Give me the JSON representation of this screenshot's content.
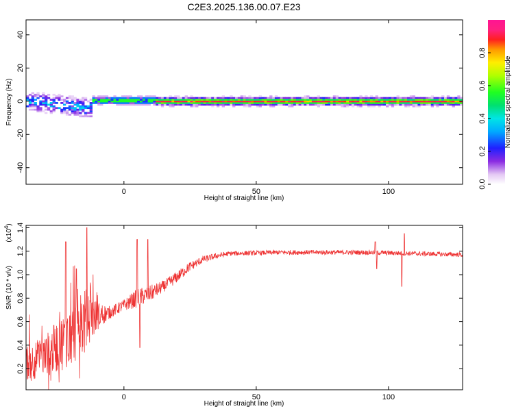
{
  "chart_data": [
    {
      "type": "heatmap",
      "title": "C2E3.2025.136.00.07.E23",
      "xlabel": "Height of straight line (km)",
      "ylabel": "Frequency (Hz)",
      "xlim": [
        -37,
        128
      ],
      "ylim": [
        -50,
        49
      ],
      "x_ticks": [
        0,
        50,
        100
      ],
      "y_ticks": [
        40,
        20,
        0,
        -20,
        -40
      ],
      "x_tick_labels": [
        "0",
        "50",
        "100"
      ],
      "y_tick_labels": [
        "40",
        "20",
        "0",
        "-20",
        "-40"
      ],
      "colorbar": {
        "label": "Normalized spectral amplitude",
        "ticks": [
          0.0,
          0.2,
          0.4,
          0.6,
          0.8
        ],
        "tick_labels": [
          "0.0",
          "0.2",
          "0.4",
          "0.6",
          "0.8"
        ],
        "range": [
          0,
          1
        ],
        "colormap": "rainbow (white-purple-blue-cyan-green-yellow-orange-red-magenta)"
      },
      "bands": [
        {
          "x_from": -37,
          "x_to": -12,
          "freq_center": 0,
          "freq_spread": 8,
          "amplitude": 0.3,
          "character": "scattered"
        },
        {
          "x_from": -12,
          "x_to": 12,
          "freq_center": 0.5,
          "freq_spread": 3,
          "amplitude": 0.6,
          "character": "patchy"
        },
        {
          "x_from": 12,
          "x_to": 128,
          "freq_center": 0,
          "freq_spread": 3,
          "amplitude": 0.85,
          "character": "continuous"
        }
      ]
    },
    {
      "type": "line",
      "xlabel": "Height of straight line (km)",
      "ylabel": "SNR (10 * v/v)",
      "ylabel_multiplier": "(x10^4)",
      "multiplier_base": "(x10",
      "multiplier_exp": "4",
      "multiplier_close": ")",
      "xlim": [
        -37,
        128
      ],
      "ylim": [
        0.02,
        1.42
      ],
      "x_ticks": [
        0,
        50,
        100
      ],
      "y_ticks": [
        0.2,
        0.4,
        0.6,
        0.8,
        1.0,
        1.2,
        1.4
      ],
      "x_tick_labels": [
        "0",
        "50",
        "100"
      ],
      "y_tick_labels": [
        "0.2",
        "0.4",
        "0.6",
        "0.8",
        "1.0",
        "1.2",
        "1.4"
      ],
      "color": "#ee3333",
      "series_profile": [
        {
          "x": -37,
          "mean": 0.25,
          "noise": 0.15
        },
        {
          "x": -30,
          "mean": 0.3,
          "noise": 0.18
        },
        {
          "x": -22,
          "mean": 0.45,
          "noise": 0.25
        },
        {
          "x": -15,
          "mean": 0.6,
          "noise": 0.3
        },
        {
          "x": -10,
          "mean": 0.65,
          "noise": 0.12
        },
        {
          "x": -5,
          "mean": 0.68,
          "noise": 0.05
        },
        {
          "x": 0,
          "mean": 0.74,
          "noise": 0.05
        },
        {
          "x": 5,
          "mean": 0.8,
          "noise": 0.08
        },
        {
          "x": 10,
          "mean": 0.84,
          "noise": 0.07
        },
        {
          "x": 15,
          "mean": 0.9,
          "noise": 0.05
        },
        {
          "x": 20,
          "mean": 0.98,
          "noise": 0.05
        },
        {
          "x": 25,
          "mean": 1.07,
          "noise": 0.04
        },
        {
          "x": 30,
          "mean": 1.13,
          "noise": 0.03
        },
        {
          "x": 35,
          "mean": 1.16,
          "noise": 0.025
        },
        {
          "x": 40,
          "mean": 1.18,
          "noise": 0.02
        },
        {
          "x": 60,
          "mean": 1.19,
          "noise": 0.02
        },
        {
          "x": 90,
          "mean": 1.19,
          "noise": 0.02
        },
        {
          "x": 110,
          "mean": 1.18,
          "noise": 0.02
        },
        {
          "x": 128,
          "mean": 1.17,
          "noise": 0.02
        }
      ],
      "spikes": [
        {
          "x": -14,
          "y": 1.4
        },
        {
          "x": -22,
          "y": 1.28
        },
        {
          "x": -18,
          "y": 1.05
        },
        {
          "x": 5,
          "y": 1.3
        },
        {
          "x": 6,
          "y": 0.38
        },
        {
          "x": 9,
          "y": 1.3
        },
        {
          "x": 95,
          "y": 1.28
        },
        {
          "x": 95.5,
          "y": 1.05
        },
        {
          "x": 105,
          "y": 0.9
        },
        {
          "x": 106,
          "y": 1.35
        }
      ]
    }
  ]
}
